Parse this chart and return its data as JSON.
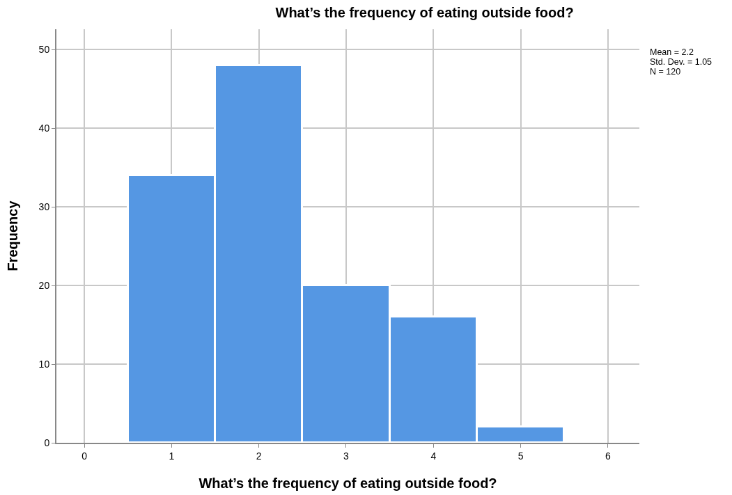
{
  "chart_data": {
    "type": "histogram",
    "title": "What’s the frequency of eating outside food?",
    "xlabel": "What’s the frequency of eating outside food?",
    "ylabel": "Frequency",
    "bins": [
      0.5,
      1.5,
      2.5,
      3.5,
      4.5,
      5.5
    ],
    "values": [
      34,
      48,
      20,
      16,
      2
    ],
    "color": "#5597e3",
    "xlim": [
      -0.32,
      6.36
    ],
    "xticks": [
      0,
      1,
      2,
      3,
      4,
      5,
      6
    ],
    "ylim": [
      0,
      52.6
    ],
    "yticks": [
      0,
      10,
      20,
      30,
      40,
      50
    ],
    "grid": true,
    "annotations": [
      "Mean = 2.2",
      "Std. Dev. = 1.05",
      "N = 120"
    ]
  }
}
